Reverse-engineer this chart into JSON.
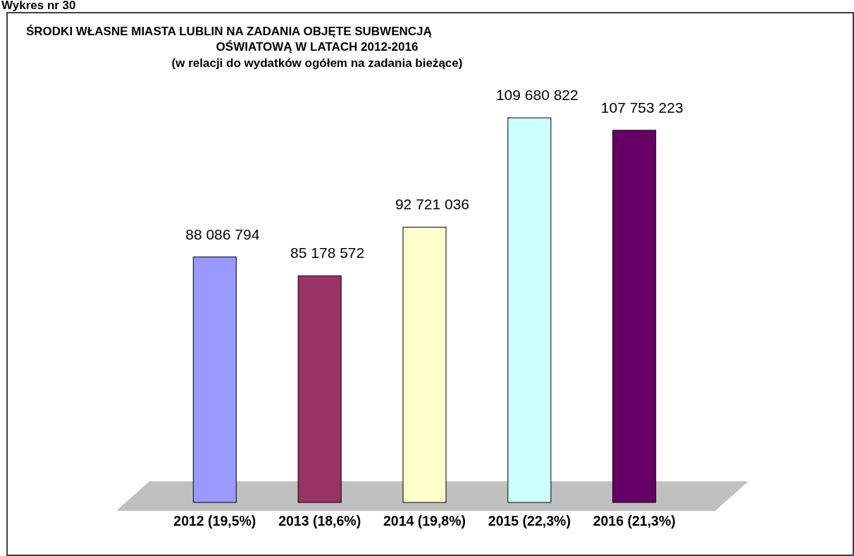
{
  "chart_data": {
    "type": "bar",
    "title": "ŚRODKI WŁASNE MIASTA LUBLIN NA ZADANIA  OBJĘTE SUBWENCJĄ\nOŚWIATOWĄ W LATACH 2012-2016",
    "subtitle": "(w relacji do wydatków ogółem na zadania bieżące)",
    "annotations": [
      "Wykres nr 30"
    ],
    "categories": [
      "2012 (19,5%)",
      "2013 (18,6%)",
      "2014 (19,8%)",
      "2015 (22,3%)",
      "2016 (21,3%)"
    ],
    "values": [
      88086794,
      85178572,
      92721036,
      109680822,
      107753223
    ],
    "colors": [
      "#9999ff",
      "#993366",
      "#ffffcc",
      "#ccffff",
      "#660066"
    ],
    "value_labels": [
      "88 086 794",
      "85 178 572",
      "92 721 036",
      "109 680 822",
      "107 753 223"
    ],
    "ylim": [
      50000000,
      126000000
    ]
  }
}
